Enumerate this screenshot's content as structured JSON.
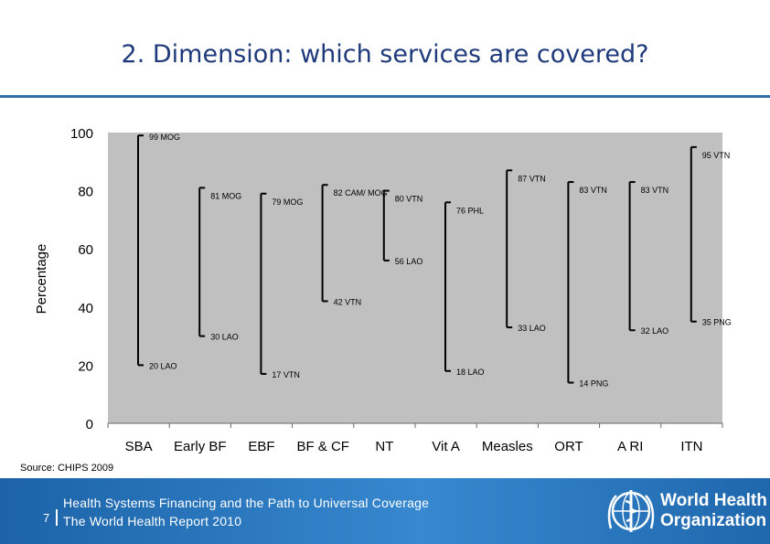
{
  "slide": {
    "title": "2. Dimension: which services are covered?",
    "source": "Source:  CHIPS 2009"
  },
  "footer": {
    "page_number": "7",
    "report_line1": "Health Systems Financing and the Path to Universal Coverage",
    "report_line2": "The World Health Report 2010",
    "org_line1": "World Health",
    "org_line2": "Organization",
    "logo_icon": "who-emblem-icon",
    "colors": {
      "band": "#2a78c0",
      "title": "#1f3a7a",
      "rule": "#2f6fa8"
    }
  },
  "chart_data": {
    "type": "range",
    "title": "",
    "xlabel": "",
    "ylabel": "Percentage",
    "ylim": [
      0,
      100
    ],
    "yticks": [
      0,
      20,
      40,
      60,
      80,
      100
    ],
    "grid": false,
    "plot_background": "#c0c0c0",
    "categories": [
      "SBA",
      "Early BF",
      "EBF",
      "BF & CF",
      "NT",
      "Vit A",
      "Measles",
      "ORT",
      "A RI",
      "ITN"
    ],
    "ranges": [
      {
        "category": "SBA",
        "high": 99,
        "high_label": "99 MOG",
        "low": 20,
        "low_label": "20 LAO"
      },
      {
        "category": "Early BF",
        "high": 81,
        "high_label": "81 MOG",
        "low": 30,
        "low_label": "30 LAO"
      },
      {
        "category": "EBF",
        "high": 79,
        "high_label": "79 MOG",
        "low": 17,
        "low_label": "17 VTN"
      },
      {
        "category": "BF & CF",
        "high": 82,
        "high_label": "82 CAM/ MOG",
        "low": 42,
        "low_label": "42 VTN"
      },
      {
        "category": "NT",
        "high": 80,
        "high_label": "80 VTN",
        "low": 56,
        "low_label": "56 LAO"
      },
      {
        "category": "Vit A",
        "high": 76,
        "high_label": "76 PHL",
        "low": 18,
        "low_label": "18 LAO"
      },
      {
        "category": "Measles",
        "high": 87,
        "high_label": "87 VTN",
        "low": 33,
        "low_label": "33 LAO"
      },
      {
        "category": "ORT",
        "high": 83,
        "high_label": "83 VTN",
        "low": 14,
        "low_label": "14 PNG"
      },
      {
        "category": "A RI",
        "high": 83,
        "high_label": "83 VTN",
        "low": 32,
        "low_label": "32 LAO"
      },
      {
        "category": "ITN",
        "high": 95,
        "high_label": "95 VTN",
        "low": 35,
        "low_label": "35 PNG"
      }
    ]
  }
}
